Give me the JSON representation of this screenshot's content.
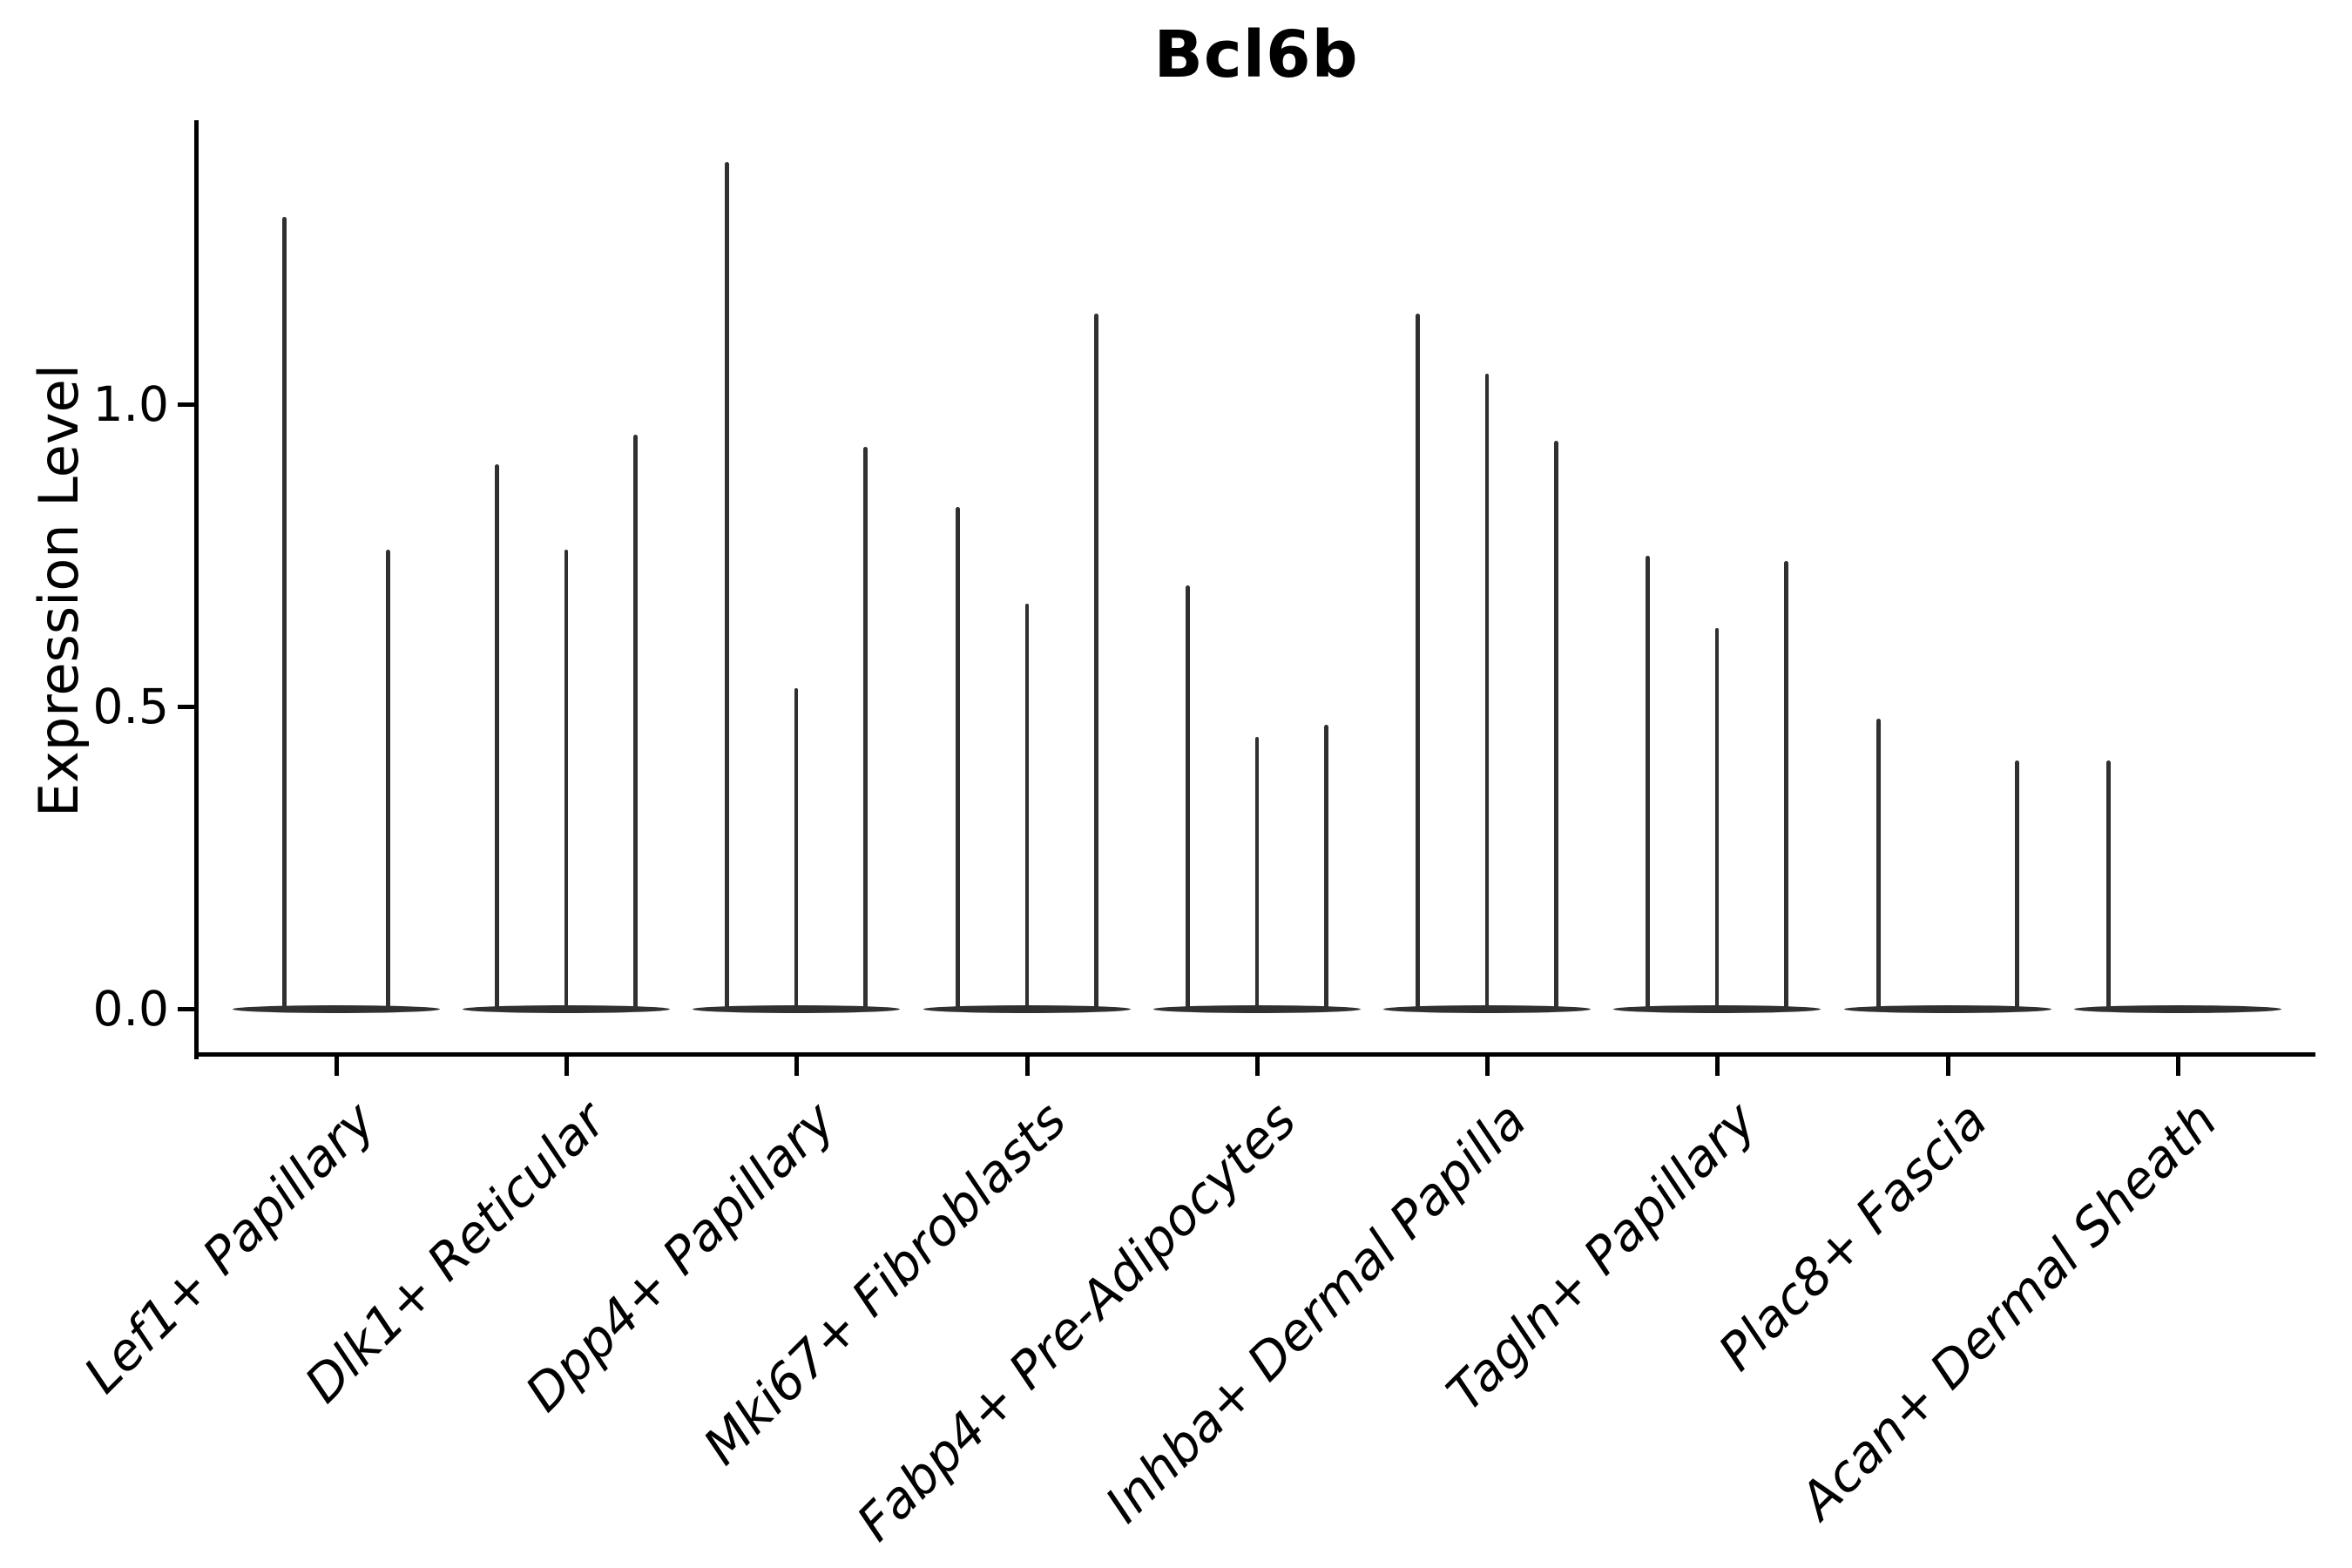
{
  "title": "Bcl6b",
  "y_axis": {
    "label": "Expression Level",
    "ticks": [
      "0.0",
      "0.5",
      "1.0"
    ]
  },
  "chart_data": {
    "type": "violin",
    "title": "Bcl6b",
    "xlabel": "",
    "ylabel": "Expression Level",
    "ylim": [
      -0.08,
      1.46
    ],
    "yticks": [
      0.0,
      0.5,
      1.0
    ],
    "grid": false,
    "legend": "none",
    "style": "single-cell expression violins: wide flat base at 0 with thin spike up to the max expressed value; a max of 0 means a flat violin with no spike",
    "categories": [
      "Lef1+ Papillary",
      "Dlk1+ Reticular",
      "Dpp4+ Papillary",
      "Mki67+ Fibroblasts",
      "Fabp4+ Pre-Adipocytes",
      "Inhba+ Dermal Papilla",
      "Tagln+ Papillary",
      "Plac8+ Fascia",
      "Acan+ Dermal Sheath"
    ],
    "series": [
      {
        "category": "Lef1+ Papillary",
        "violin_max_values": [
          1.31,
          0.76
        ]
      },
      {
        "category": "Dlk1+ Reticular",
        "violin_max_values": [
          0.9,
          0.76,
          0.95
        ]
      },
      {
        "category": "Dpp4+ Papillary",
        "violin_max_values": [
          1.4,
          0.53,
          0.93
        ]
      },
      {
        "category": "Mki67+ Fibroblasts",
        "violin_max_values": [
          0.83,
          0.67,
          1.15
        ]
      },
      {
        "category": "Fabp4+ Pre-Adipocytes",
        "violin_max_values": [
          0.7,
          0.45,
          0.47
        ]
      },
      {
        "category": "Inhba+ Dermal Papilla",
        "violin_max_values": [
          1.15,
          1.05,
          0.94
        ]
      },
      {
        "category": "Tagln+ Papillary",
        "violin_max_values": [
          0.75,
          0.63,
          0.74
        ]
      },
      {
        "category": "Plac8+ Fascia",
        "violin_max_values": [
          0.48,
          0.0,
          0.41
        ]
      },
      {
        "category": "Acan+ Dermal Sheath",
        "violin_max_values": [
          0.41,
          0.0,
          0.0
        ]
      }
    ]
  }
}
